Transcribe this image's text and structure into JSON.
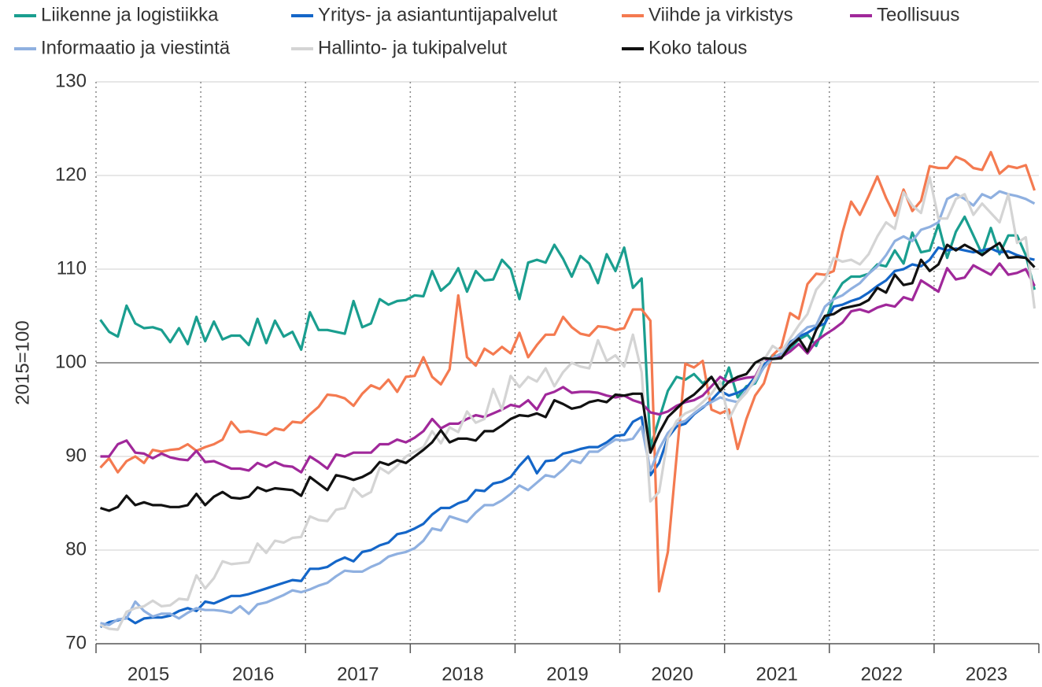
{
  "chart_data": {
    "type": "line",
    "y_label": "2015=100",
    "categories": [
      "2015",
      null,
      null,
      null,
      null,
      null,
      null,
      null,
      null,
      null,
      null,
      null,
      "2016",
      null,
      null,
      null,
      null,
      null,
      null,
      null,
      null,
      null,
      null,
      null,
      "2017",
      null,
      null,
      null,
      null,
      null,
      null,
      null,
      null,
      null,
      null,
      null,
      "2018",
      null,
      null,
      null,
      null,
      null,
      null,
      null,
      null,
      null,
      null,
      null,
      "2019",
      null,
      null,
      null,
      null,
      null,
      null,
      null,
      null,
      null,
      null,
      null,
      "2020",
      null,
      null,
      null,
      null,
      null,
      null,
      null,
      null,
      null,
      null,
      null,
      "2021",
      null,
      null,
      null,
      null,
      null,
      null,
      null,
      null,
      null,
      null,
      null,
      "2022",
      null,
      null,
      null,
      null,
      null,
      null,
      null,
      null,
      null,
      null,
      null,
      "2023",
      null,
      null,
      null,
      null,
      null,
      null,
      null,
      null,
      null,
      null,
      null
    ],
    "ylim": [
      70,
      130
    ],
    "yticks": [
      70,
      80,
      90,
      100,
      110,
      120,
      130
    ],
    "grid": true,
    "hline": 100,
    "legend": "top",
    "series": [
      {
        "name": "Liikenne ja logistiikka",
        "color": "#1a9e8f",
        "values": [
          104.6,
          103.3,
          102.8,
          106.1,
          104.2,
          103.7,
          103.8,
          103.5,
          102.2,
          103.7,
          102.0,
          104.9,
          102.3,
          104.4,
          102.5,
          102.9,
          102.9,
          101.9,
          104.7,
          102.1,
          104.5,
          102.8,
          103.3,
          101.4,
          105.4,
          103.5,
          103.5,
          103.3,
          103.1,
          106.6,
          103.8,
          104.2,
          106.8,
          106.2,
          106.6,
          106.7,
          107.2,
          107.1,
          109.8,
          107.7,
          108.5,
          110.1,
          107.6,
          109.8,
          108.8,
          108.9,
          111.0,
          110.0,
          106.8,
          110.7,
          111.0,
          110.7,
          112.6,
          111.1,
          109.2,
          111.4,
          110.6,
          108.5,
          111.6,
          109.8,
          112.3,
          108.0,
          109.0,
          91.0,
          94.0,
          97.0,
          98.5,
          98.2,
          98.8,
          97.8,
          98.5,
          97.0,
          99.5,
          96.3,
          97.5,
          97.8,
          99.6,
          100.8,
          100.6,
          101.5,
          102.5,
          103.0,
          101.8,
          104.2,
          107.0,
          108.5,
          109.2,
          109.2,
          109.5,
          110.5,
          110.3,
          112.0,
          110.6,
          113.9,
          111.8,
          112.0,
          114.8,
          111.2,
          114.0,
          115.6,
          113.6,
          111.6,
          114.4,
          111.6,
          113.6,
          113.6,
          111.5,
          107.8
        ]
      },
      {
        "name": "Yritys- ja asiantuntijapalvelut",
        "color": "#1466c8",
        "values": [
          71.8,
          72.3,
          72.5,
          72.8,
          72.2,
          72.7,
          72.8,
          72.8,
          73.0,
          73.5,
          73.8,
          73.5,
          74.5,
          74.3,
          74.7,
          75.1,
          75.1,
          75.3,
          75.6,
          75.9,
          76.2,
          76.5,
          76.8,
          76.7,
          78.0,
          78.0,
          78.2,
          78.8,
          79.2,
          78.8,
          79.8,
          80.0,
          80.5,
          80.8,
          81.7,
          81.9,
          82.3,
          82.8,
          83.8,
          84.5,
          84.5,
          85.0,
          85.3,
          86.4,
          86.3,
          87.1,
          87.3,
          87.8,
          89.0,
          90.0,
          88.2,
          89.5,
          89.6,
          90.3,
          90.5,
          90.8,
          91.0,
          91.0,
          91.5,
          92.2,
          92.3,
          93.7,
          94.2,
          88.0,
          89.3,
          92.0,
          93.2,
          93.5,
          94.5,
          95.2,
          96.0,
          97.0,
          96.5,
          96.8,
          97.3,
          98.5,
          99.8,
          100.5,
          101.0,
          102.2,
          102.8,
          103.2,
          103.8,
          104.2,
          106.0,
          106.2,
          106.6,
          106.9,
          107.5,
          108.2,
          108.8,
          109.8,
          110.0,
          110.5,
          110.3,
          111.0,
          112.3,
          112.0,
          112.2,
          112.0,
          111.8,
          112.0,
          112.2,
          111.8,
          111.9,
          111.5,
          111.2,
          111.0
        ]
      },
      {
        "name": "Viihde ja virkistys",
        "color": "#f47a50",
        "values": [
          88.8,
          89.8,
          88.3,
          89.5,
          90.0,
          89.3,
          90.7,
          90.5,
          90.7,
          90.8,
          91.3,
          90.6,
          91.0,
          91.3,
          91.8,
          93.7,
          92.6,
          92.7,
          92.5,
          92.3,
          93.0,
          92.8,
          93.7,
          93.6,
          94.5,
          95.3,
          96.6,
          96.5,
          96.2,
          95.4,
          96.7,
          97.6,
          97.2,
          98.2,
          96.9,
          98.5,
          98.6,
          100.6,
          98.5,
          97.7,
          99.3,
          107.2,
          100.6,
          99.7,
          101.5,
          100.9,
          101.7,
          101.0,
          103.2,
          100.6,
          101.9,
          103.0,
          103.0,
          104.9,
          103.8,
          103.1,
          102.9,
          103.9,
          103.8,
          103.5,
          103.7,
          105.7,
          105.7,
          104.5,
          75.6,
          79.8,
          90.0,
          99.9,
          99.5,
          100.2,
          95.0,
          94.6,
          95.0,
          90.8,
          94.0,
          96.5,
          97.8,
          100.8,
          101.7,
          105.3,
          104.7,
          108.4,
          109.5,
          109.4,
          109.8,
          113.9,
          117.2,
          115.8,
          117.8,
          119.9,
          117.6,
          115.7,
          118.5,
          116.2,
          117.3,
          121.0,
          120.8,
          120.8,
          122.0,
          121.6,
          120.8,
          120.6,
          122.5,
          120.2,
          121.0,
          120.8,
          121.1,
          118.4
        ]
      },
      {
        "name": "Teollisuus",
        "color": "#a0289a",
        "values": [
          90.0,
          90.0,
          91.3,
          91.7,
          90.4,
          90.3,
          89.8,
          90.3,
          89.9,
          89.7,
          89.6,
          90.6,
          89.4,
          89.5,
          89.1,
          88.7,
          88.7,
          88.5,
          89.3,
          88.9,
          89.4,
          89.0,
          88.9,
          88.3,
          90.0,
          89.4,
          88.7,
          90.2,
          90.0,
          90.4,
          90.4,
          90.4,
          91.3,
          91.3,
          91.8,
          91.5,
          92.0,
          92.7,
          94.0,
          93.0,
          93.5,
          93.5,
          94.0,
          94.4,
          94.2,
          94.6,
          95.0,
          95.5,
          95.3,
          96.0,
          95.0,
          96.6,
          96.9,
          97.4,
          96.8,
          96.9,
          96.9,
          96.8,
          96.5,
          96.3,
          96.5,
          96.0,
          95.7,
          94.7,
          94.5,
          94.8,
          95.4,
          95.8,
          96.0,
          96.5,
          97.5,
          98.5,
          97.9,
          98.2,
          98.4,
          98.5,
          100.3,
          100.5,
          100.6,
          101.2,
          102.0,
          101.0,
          102.3,
          103.0,
          103.6,
          104.3,
          105.5,
          105.7,
          105.4,
          105.9,
          106.2,
          106.0,
          107.0,
          106.7,
          108.8,
          108.2,
          107.6,
          110.1,
          108.9,
          109.1,
          110.4,
          109.9,
          109.4,
          110.6,
          109.4,
          109.6,
          110.0,
          108.2
        ]
      },
      {
        "name": "Informaatio ja viestintä",
        "color": "#8fb0e0",
        "values": [
          72.2,
          72.0,
          72.6,
          72.7,
          74.5,
          73.5,
          72.9,
          73.2,
          73.2,
          72.7,
          73.3,
          73.8,
          73.6,
          73.6,
          73.5,
          73.3,
          74.0,
          73.2,
          74.2,
          74.4,
          74.8,
          75.2,
          75.7,
          75.5,
          75.8,
          76.2,
          76.5,
          77.2,
          77.8,
          77.7,
          77.7,
          78.2,
          78.6,
          79.3,
          79.6,
          79.8,
          80.2,
          81.0,
          82.3,
          82.1,
          83.6,
          83.3,
          83.0,
          84.0,
          84.8,
          84.8,
          85.3,
          86.0,
          86.9,
          86.4,
          87.2,
          88.0,
          87.8,
          88.6,
          89.6,
          89.3,
          90.5,
          90.5,
          91.2,
          91.8,
          91.7,
          91.9,
          93.2,
          88.5,
          90.8,
          92.5,
          93.5,
          93.8,
          94.6,
          95.3,
          95.8,
          96.3,
          96.0,
          95.8,
          97.0,
          98.0,
          99.5,
          100.5,
          101.0,
          102.0,
          103.0,
          103.8,
          104.0,
          106.0,
          106.8,
          107.2,
          107.9,
          108.5,
          109.5,
          110.3,
          111.5,
          113.0,
          113.5,
          113.0,
          114.2,
          114.5,
          115.0,
          117.5,
          118.0,
          117.5,
          116.8,
          118.0,
          117.6,
          118.3,
          118.0,
          117.8,
          117.5,
          117.0
        ]
      },
      {
        "name": "Hallinto- ja tukipalvelut",
        "color": "#d4d4d4",
        "values": [
          72.0,
          71.6,
          71.5,
          73.4,
          73.8,
          74.0,
          74.6,
          74.0,
          74.1,
          74.8,
          74.7,
          77.3,
          75.9,
          77.0,
          78.8,
          78.5,
          78.6,
          78.7,
          80.7,
          79.7,
          81.0,
          80.8,
          81.3,
          81.4,
          83.6,
          83.2,
          83.1,
          84.3,
          84.5,
          86.6,
          85.7,
          86.2,
          88.8,
          88.2,
          89.0,
          90.0,
          90.5,
          91.0,
          92.7,
          91.4,
          93.1,
          92.6,
          94.8,
          93.6,
          94.0,
          97.2,
          95.0,
          98.6,
          97.4,
          98.5,
          98.0,
          99.4,
          97.5,
          99.0,
          100.0,
          99.6,
          99.4,
          102.4,
          100.2,
          100.8,
          99.6,
          103.0,
          99.0,
          85.2,
          86.2,
          92.0,
          93.8,
          94.6,
          95.0,
          95.8,
          96.7,
          98.0,
          94.0,
          95.8,
          96.8,
          98.3,
          100.3,
          101.8,
          101.2,
          102.6,
          104.0,
          105.2,
          107.8,
          108.9,
          111.2,
          110.8,
          111.0,
          110.5,
          111.6,
          113.5,
          115.0,
          114.3,
          118.2,
          116.8,
          116.0,
          119.8,
          115.4,
          115.4,
          117.5,
          118.0,
          115.8,
          117.0,
          116.0,
          115.0,
          118.0,
          112.8,
          113.4,
          105.8
        ]
      },
      {
        "name": "Koko talous",
        "color": "#111111",
        "values": [
          84.5,
          84.2,
          84.6,
          85.8,
          84.8,
          85.1,
          84.8,
          84.8,
          84.6,
          84.6,
          84.8,
          86.0,
          84.8,
          85.7,
          86.2,
          85.6,
          85.5,
          85.7,
          86.7,
          86.3,
          86.6,
          86.5,
          86.4,
          85.8,
          87.8,
          87.1,
          86.4,
          88.0,
          87.8,
          87.5,
          87.8,
          88.3,
          89.4,
          89.1,
          89.6,
          89.3,
          90.0,
          90.7,
          91.5,
          92.8,
          91.5,
          91.9,
          91.9,
          91.7,
          92.7,
          92.7,
          93.3,
          94.0,
          94.4,
          94.3,
          94.6,
          94.2,
          96.0,
          95.6,
          95.1,
          95.3,
          95.8,
          96.0,
          95.8,
          96.6,
          96.5,
          96.7,
          96.7,
          90.4,
          92.5,
          94.2,
          95.1,
          96.0,
          96.6,
          97.5,
          98.5,
          97.0,
          98.0,
          98.5,
          98.8,
          100.0,
          100.5,
          100.4,
          100.5,
          101.8,
          102.6,
          101.2,
          103.5,
          105.0,
          105.2,
          105.8,
          106.0,
          106.2,
          106.7,
          108.0,
          107.5,
          109.4,
          108.3,
          108.5,
          111.0,
          109.8,
          110.5,
          112.6,
          112.0,
          112.6,
          112.1,
          111.5,
          112.2,
          112.8,
          111.2,
          111.3,
          111.2,
          110.2
        ]
      }
    ]
  }
}
